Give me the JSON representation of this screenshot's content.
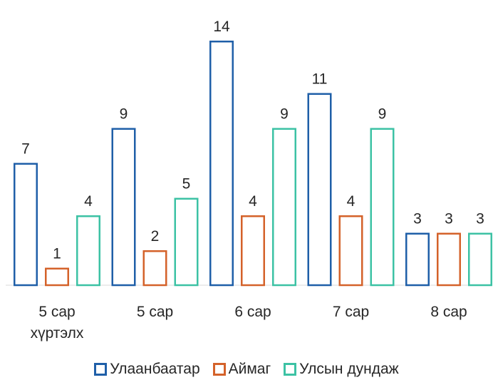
{
  "chart_data": {
    "type": "bar",
    "categories": [
      [
        "5 сар",
        "хүртэлх"
      ],
      [
        "5 сар"
      ],
      [
        "6 сар"
      ],
      [
        "7 сар"
      ],
      [
        "8 сар"
      ]
    ],
    "series": [
      {
        "name": "Улаанбаатар",
        "color": "#1f5fa8",
        "values": [
          7,
          9,
          14,
          11,
          3
        ]
      },
      {
        "name": "Аймаг",
        "color": "#d4622a",
        "values": [
          1,
          2,
          4,
          4,
          3
        ]
      },
      {
        "name": "Улсын дундаж",
        "color": "#3cc2a4",
        "values": [
          4,
          5,
          9,
          9,
          3
        ]
      }
    ],
    "title": "",
    "xlabel": "",
    "ylabel": "",
    "ylim": [
      0,
      14
    ],
    "grid": false,
    "legend_position": "bottom"
  }
}
